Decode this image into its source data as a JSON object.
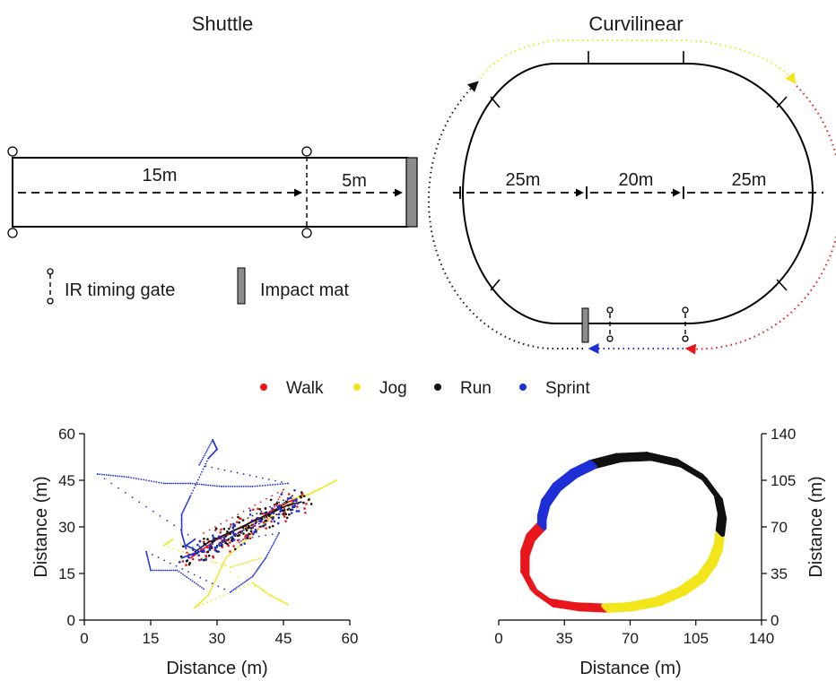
{
  "colors": {
    "walk": "#e8161b",
    "jog": "#f2e51b",
    "run": "#111111",
    "sprint": "#1f2fd6",
    "mat": "#8c8c8c"
  },
  "shuttle": {
    "title": "Shuttle",
    "label_15": "15m",
    "label_5": "5m"
  },
  "curvilinear": {
    "title": "Curvilinear",
    "label_left": "25m",
    "label_mid": "20m",
    "label_right": "25m"
  },
  "key": {
    "gate_label": "IR timing gate",
    "mat_label": "Impact mat",
    "gate_icon": "timing-gate-icon",
    "mat_icon": "impact-mat-icon"
  },
  "legend": [
    {
      "label": "Walk",
      "color_key": "walk"
    },
    {
      "label": "Jog",
      "color_key": "jog"
    },
    {
      "label": "Run",
      "color_key": "run"
    },
    {
      "label": "Sprint",
      "color_key": "sprint"
    }
  ],
  "chart_data": [
    {
      "type": "scatter",
      "xlabel": "Distance (m)",
      "ylabel": "Distance (m)",
      "xlim": [
        0,
        60
      ],
      "ylim": [
        0,
        60
      ],
      "xticks": [
        "0",
        "15",
        "30",
        "45",
        "60"
      ],
      "yticks": [
        "0",
        "15",
        "30",
        "45",
        "60"
      ],
      "y_axis_side": "left",
      "series": [
        {
          "name": "Walk",
          "color_key": "walk",
          "points": [
            [
              24,
              20
            ],
            [
              26,
              22
            ],
            [
              28,
              24
            ],
            [
              30,
              26
            ],
            [
              32,
              27
            ],
            [
              34,
              29
            ],
            [
              36,
              30
            ],
            [
              38,
              32
            ],
            [
              40,
              33
            ],
            [
              42,
              35
            ],
            [
              44,
              36
            ],
            [
              46,
              38
            ],
            [
              48,
              39
            ],
            [
              35,
              25
            ],
            [
              41,
              31
            ],
            [
              45,
              42
            ],
            [
              27,
              28
            ]
          ]
        },
        {
          "name": "Jog",
          "color_key": "jog",
          "points": [
            [
              47,
              39
            ],
            [
              50,
              40
            ],
            [
              53,
              42
            ],
            [
              57,
              45
            ],
            [
              44,
              36
            ],
            [
              40,
              30
            ],
            [
              36,
              25
            ],
            [
              32,
              20
            ],
            [
              30,
              14
            ],
            [
              28,
              8
            ],
            [
              25,
              4
            ],
            [
              38,
              12
            ],
            [
              42,
              8
            ],
            [
              46,
              5
            ],
            [
              20,
              26
            ],
            [
              18,
              24
            ],
            [
              33,
              17
            ],
            [
              40,
              20
            ]
          ]
        },
        {
          "name": "Run",
          "color_key": "run",
          "points": [
            [
              25,
              22
            ],
            [
              28,
              25
            ],
            [
              31,
              27
            ],
            [
              34,
              29
            ],
            [
              37,
              31
            ],
            [
              40,
              33
            ],
            [
              43,
              35
            ],
            [
              46,
              37
            ],
            [
              49,
              38
            ],
            [
              30,
              24
            ],
            [
              36,
              29
            ],
            [
              42,
              34
            ],
            [
              47,
              40
            ],
            [
              33,
              30
            ]
          ]
        },
        {
          "name": "Sprint",
          "color_key": "sprint",
          "points": [
            [
              22,
              20
            ],
            [
              24,
              21
            ],
            [
              26,
              22
            ],
            [
              23,
              24
            ],
            [
              25,
              26
            ],
            [
              3,
              47
            ],
            [
              10,
              46
            ],
            [
              18,
              44
            ],
            [
              24,
              44
            ],
            [
              31,
              43
            ],
            [
              38,
              43
            ],
            [
              46,
              44
            ],
            [
              26,
              50
            ],
            [
              29,
              58
            ],
            [
              30,
              55
            ],
            [
              28,
              52
            ],
            [
              24,
              40
            ],
            [
              22,
              34
            ],
            [
              22,
              28
            ],
            [
              23,
              23
            ],
            [
              44,
              28
            ],
            [
              41,
              20
            ],
            [
              38,
              14
            ],
            [
              33,
              9
            ],
            [
              14,
              22
            ],
            [
              15,
              16
            ],
            [
              21,
              16
            ],
            [
              27,
              10
            ]
          ]
        }
      ]
    },
    {
      "type": "scatter",
      "xlabel": "Distance (m)",
      "ylabel": "Distance (m)",
      "xlim": [
        0,
        140
      ],
      "ylim": [
        0,
        140
      ],
      "xticks": [
        "0",
        "35",
        "70",
        "105",
        "140"
      ],
      "yticks": [
        "0",
        "35",
        "70",
        "105",
        "140"
      ],
      "y_axis_side": "right",
      "series": [
        {
          "name": "Walk",
          "color_key": "walk",
          "points": [
            [
              57,
              9
            ],
            [
              42,
              10
            ],
            [
              28,
              13
            ],
            [
              19,
              22
            ],
            [
              14,
              35
            ],
            [
              14,
              50
            ],
            [
              17,
              62
            ],
            [
              23,
              71
            ]
          ]
        },
        {
          "name": "Jog",
          "color_key": "jog",
          "points": [
            [
              57,
              9
            ],
            [
              70,
              10
            ],
            [
              85,
              14
            ],
            [
              98,
              22
            ],
            [
              108,
              32
            ],
            [
              114,
              44
            ],
            [
              117,
              55
            ],
            [
              118,
              66
            ]
          ]
        },
        {
          "name": "Run",
          "color_key": "run",
          "points": [
            [
              118,
              66
            ],
            [
              119,
              78
            ],
            [
              117,
              92
            ],
            [
              109,
              107
            ],
            [
              96,
              118
            ],
            [
              80,
              123
            ],
            [
              64,
              122
            ],
            [
              50,
              117
            ]
          ]
        },
        {
          "name": "Sprint",
          "color_key": "sprint",
          "points": [
            [
              50,
              117
            ],
            [
              40,
              110
            ],
            [
              31,
              100
            ],
            [
              25,
              88
            ],
            [
              23,
              77
            ],
            [
              23,
              71
            ]
          ]
        }
      ]
    }
  ]
}
